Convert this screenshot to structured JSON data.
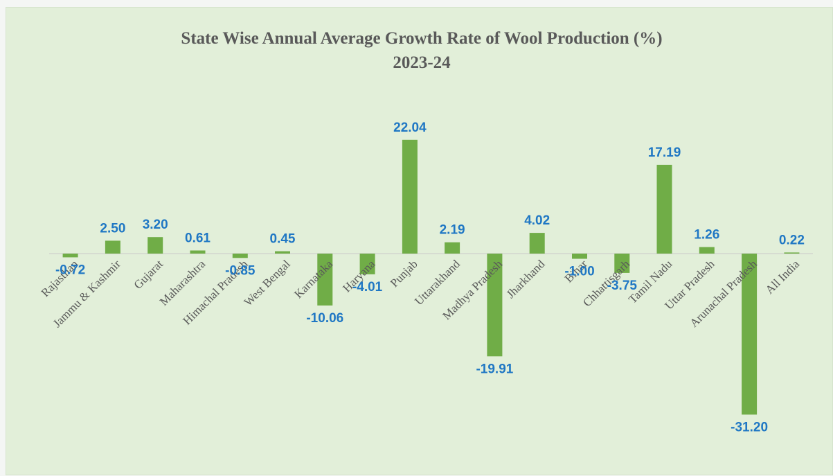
{
  "chart_data": {
    "type": "bar",
    "title": "State Wise Annual  Average Growth  Rate of Wool Production  (%)",
    "subtitle": "2023-24",
    "categories": [
      "Rajasthan",
      "Jammu & Kashmir",
      "Gujarat",
      "Maharashtra",
      "Himachal Pradesh",
      "West Bengal",
      "Karnataka",
      "Haryana",
      "Punjab",
      "Uttarakhand",
      "Madhya Pradesh",
      "Jharkhand",
      "Bihar",
      "Chhattisgarh",
      "Tamil Nadu",
      "Uttar Pradesh",
      "Arunachal Pradesh",
      "All India"
    ],
    "series": [
      {
        "values": [
          -0.72,
          2.5,
          3.2,
          0.61,
          -0.85,
          0.45,
          -10.06,
          -4.01,
          22.04,
          2.19,
          -19.91,
          4.02,
          -1.0,
          -3.75,
          17.19,
          1.26,
          -31.2,
          0.22
        ],
        "labels": [
          "-0.72",
          "2.50",
          "3.20",
          "0.61",
          "-0.85",
          "0.45",
          "-10.06",
          "-4.01",
          "22.04",
          "2.19",
          "-19.91",
          "4.02",
          "-1.00",
          "-3.75",
          "17.19",
          "1.26",
          "-31.20",
          "0.22"
        ]
      }
    ],
    "ylim": [
      -34,
      26
    ],
    "grid": false,
    "legend": "none",
    "colors": {
      "bar": "#70ad47",
      "value_label": "#1f77c4",
      "title": "#595959",
      "axis": "#c9c9c9",
      "background": "#e2efd9"
    }
  }
}
